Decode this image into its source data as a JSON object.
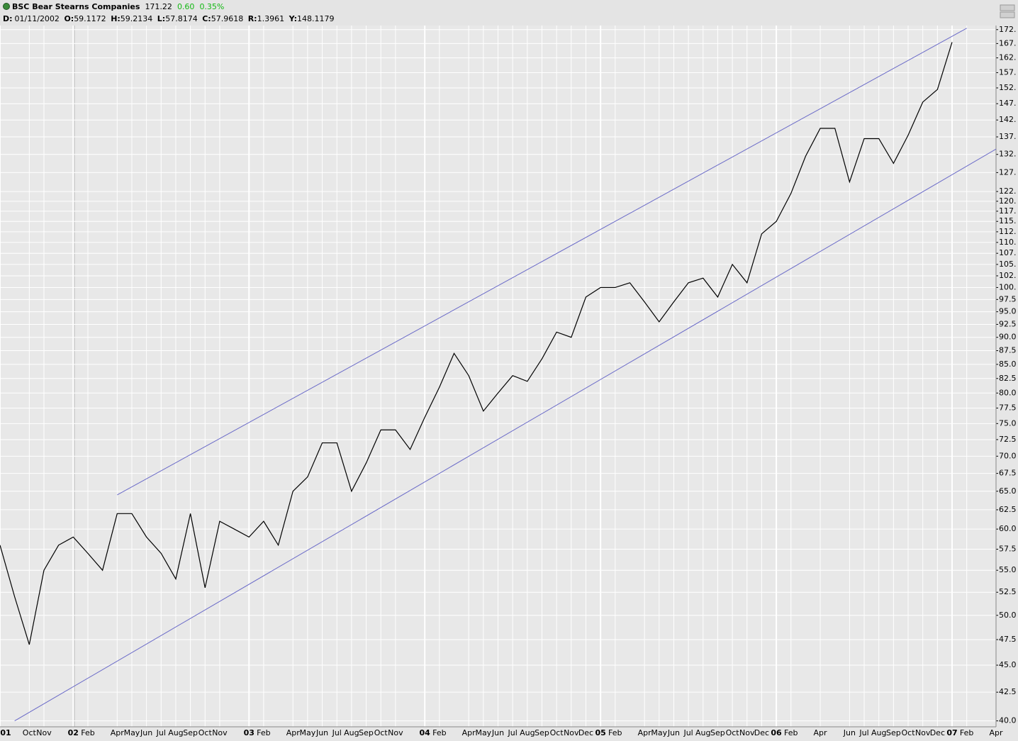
{
  "header": {
    "title": "BSC Bear Stearns Companies",
    "last": "171.22",
    "change": "0.60",
    "change_pct": "0.35%",
    "change_color": "#14b814",
    "fields": [
      {
        "key": "D:",
        "value": "01/11/2002"
      },
      {
        "key": "O:",
        "value": "59.1172"
      },
      {
        "key": "H:",
        "value": "59.2134"
      },
      {
        "key": "L:",
        "value": "57.8174"
      },
      {
        "key": "C:",
        "value": "57.9618"
      },
      {
        "key": "R:",
        "value": "1.3961"
      },
      {
        "key": "Y:",
        "value": "148.1179"
      }
    ]
  },
  "chart_data": {
    "type": "line",
    "log": true,
    "grid": true,
    "color": "#000000",
    "channel_color": "#6a6ac8",
    "xlim": [
      "2001-08",
      "2007-04"
    ],
    "ylim": [
      39.5,
      174
    ],
    "x": [
      "2001-08",
      "2001-09",
      "2001-10",
      "2001-11",
      "2001-12",
      "2002-01",
      "2002-02",
      "2002-03",
      "2002-04",
      "2002-05",
      "2002-06",
      "2002-07",
      "2002-08",
      "2002-09",
      "2002-10",
      "2002-11",
      "2002-12",
      "2003-01",
      "2003-02",
      "2003-03",
      "2003-04",
      "2003-05",
      "2003-06",
      "2003-07",
      "2003-08",
      "2003-09",
      "2003-10",
      "2003-11",
      "2003-12",
      "2004-01",
      "2004-02",
      "2004-03",
      "2004-04",
      "2004-05",
      "2004-06",
      "2004-07",
      "2004-08",
      "2004-09",
      "2004-10",
      "2004-11",
      "2004-12",
      "2005-01",
      "2005-02",
      "2005-03",
      "2005-04",
      "2005-05",
      "2005-06",
      "2005-07",
      "2005-08",
      "2005-09",
      "2005-10",
      "2005-11",
      "2005-12",
      "2006-01",
      "2006-02",
      "2006-03",
      "2006-04",
      "2006-05",
      "2006-06",
      "2006-07",
      "2006-08",
      "2006-09",
      "2006-10",
      "2006-11",
      "2006-12",
      "2007-01"
    ],
    "values": [
      58,
      52,
      47,
      55,
      58,
      59,
      57,
      55,
      62,
      62,
      59,
      57,
      54,
      62,
      53,
      61,
      60,
      59,
      61,
      58,
      65,
      67,
      72,
      72,
      65,
      69,
      74,
      74,
      71,
      76,
      81,
      87,
      83,
      77,
      80,
      83,
      82,
      86,
      91,
      90,
      98,
      100,
      100,
      101,
      97,
      93,
      97,
      101,
      102,
      98,
      105,
      101,
      112,
      115,
      122,
      132,
      140,
      140,
      125,
      137,
      137,
      130,
      138,
      148,
      152,
      168
    ],
    "trendlines": [
      {
        "x": [
          "2002-04",
          "2007-02"
        ],
        "values": [
          64.5,
          173
        ]
      },
      {
        "x": [
          "2001-09",
          "2007-04"
        ],
        "values": [
          40,
          134
        ]
      }
    ],
    "xticks": [
      {
        "value": "2001-08",
        "label": "01"
      },
      {
        "value": "2001-10",
        "label": "Oct"
      },
      {
        "value": "2001-11",
        "label": "Nov"
      },
      {
        "value": "2002-01",
        "label": "02"
      },
      {
        "value": "2002-02",
        "label": "Feb"
      },
      {
        "value": "2002-04",
        "label": "Apr"
      },
      {
        "value": "2002-05",
        "label": "May"
      },
      {
        "value": "2002-06",
        "label": "Jun"
      },
      {
        "value": "2002-07",
        "label": "Jul"
      },
      {
        "value": "2002-08",
        "label": "Aug"
      },
      {
        "value": "2002-09",
        "label": "Sep"
      },
      {
        "value": "2002-10",
        "label": "Oct"
      },
      {
        "value": "2002-11",
        "label": "Nov"
      },
      {
        "value": "2003-01",
        "label": "03"
      },
      {
        "value": "2003-02",
        "label": "Feb"
      },
      {
        "value": "2003-04",
        "label": "Apr"
      },
      {
        "value": "2003-05",
        "label": "May"
      },
      {
        "value": "2003-06",
        "label": "Jun"
      },
      {
        "value": "2003-07",
        "label": "Jul"
      },
      {
        "value": "2003-08",
        "label": "Aug"
      },
      {
        "value": "2003-09",
        "label": "Sep"
      },
      {
        "value": "2003-10",
        "label": "Oct"
      },
      {
        "value": "2003-11",
        "label": "Nov"
      },
      {
        "value": "2004-01",
        "label": "04"
      },
      {
        "value": "2004-02",
        "label": "Feb"
      },
      {
        "value": "2004-04",
        "label": "Apr"
      },
      {
        "value": "2004-05",
        "label": "May"
      },
      {
        "value": "2004-06",
        "label": "Jun"
      },
      {
        "value": "2004-07",
        "label": "Jul"
      },
      {
        "value": "2004-08",
        "label": "Aug"
      },
      {
        "value": "2004-09",
        "label": "Sep"
      },
      {
        "value": "2004-10",
        "label": "Oct"
      },
      {
        "value": "2004-11",
        "label": "Nov"
      },
      {
        "value": "2004-12",
        "label": "Dec"
      },
      {
        "value": "2005-01",
        "label": "05"
      },
      {
        "value": "2005-02",
        "label": "Feb"
      },
      {
        "value": "2005-04",
        "label": "Apr"
      },
      {
        "value": "2005-05",
        "label": "May"
      },
      {
        "value": "2005-06",
        "label": "Jun"
      },
      {
        "value": "2005-07",
        "label": "Jul"
      },
      {
        "value": "2005-08",
        "label": "Aug"
      },
      {
        "value": "2005-09",
        "label": "Sep"
      },
      {
        "value": "2005-10",
        "label": "Oct"
      },
      {
        "value": "2005-11",
        "label": "Nov"
      },
      {
        "value": "2005-12",
        "label": "Dec"
      },
      {
        "value": "2006-01",
        "label": "06"
      },
      {
        "value": "2006-02",
        "label": "Feb"
      },
      {
        "value": "2006-04",
        "label": "Apr"
      },
      {
        "value": "2006-06",
        "label": "Jun"
      },
      {
        "value": "2006-07",
        "label": "Jul"
      },
      {
        "value": "2006-08",
        "label": "Aug"
      },
      {
        "value": "2006-09",
        "label": "Sep"
      },
      {
        "value": "2006-10",
        "label": "Oct"
      },
      {
        "value": "2006-11",
        "label": "Nov"
      },
      {
        "value": "2006-12",
        "label": "Dec"
      },
      {
        "value": "2007-01",
        "label": "07"
      },
      {
        "value": "2007-02",
        "label": "Feb"
      },
      {
        "value": "2007-04",
        "label": "Apr"
      }
    ],
    "yticks": [
      {
        "value": 40,
        "label": "40.0"
      },
      42.5,
      {
        "value": 45,
        "label": "45.0"
      },
      47.5,
      {
        "value": 50,
        "label": "50.0"
      },
      52.5,
      {
        "value": 55,
        "label": "55.0"
      },
      57.5,
      {
        "value": 60,
        "label": "60.0"
      },
      62.5,
      {
        "value": 65,
        "label": "65.0"
      },
      67.5,
      {
        "value": 70,
        "label": "70.0"
      },
      72.5,
      {
        "value": 75,
        "label": "75.0"
      },
      77.5,
      {
        "value": 80,
        "label": "80.0"
      },
      82.5,
      {
        "value": 85,
        "label": "85.0"
      },
      87.5,
      {
        "value": 90,
        "label": "90.0"
      },
      92.5,
      {
        "value": 95,
        "label": "95.0"
      },
      97.5,
      {
        "value": 100,
        "label": "100."
      },
      {
        "value": 102.5,
        "label": "102."
      },
      {
        "value": 105,
        "label": "105."
      },
      {
        "value": 107.5,
        "label": "107."
      },
      {
        "value": 110,
        "label": "110."
      },
      {
        "value": 112.5,
        "label": "112."
      },
      {
        "value": 115,
        "label": "115."
      },
      {
        "value": 117.5,
        "label": "117."
      },
      {
        "value": 120,
        "label": "120."
      },
      {
        "value": 122.5,
        "label": "122."
      },
      {
        "value": 127.5,
        "label": "127."
      },
      {
        "value": 132.5,
        "label": "132."
      },
      {
        "value": 137.5,
        "label": "137."
      },
      {
        "value": 142.5,
        "label": "142."
      },
      {
        "value": 147.5,
        "label": "147."
      },
      {
        "value": 152.5,
        "label": "152."
      },
      {
        "value": 157.5,
        "label": "157."
      },
      {
        "value": 162.5,
        "label": "162."
      },
      {
        "value": 167.5,
        "label": "167."
      },
      {
        "value": 172.5,
        "label": "172."
      }
    ]
  }
}
